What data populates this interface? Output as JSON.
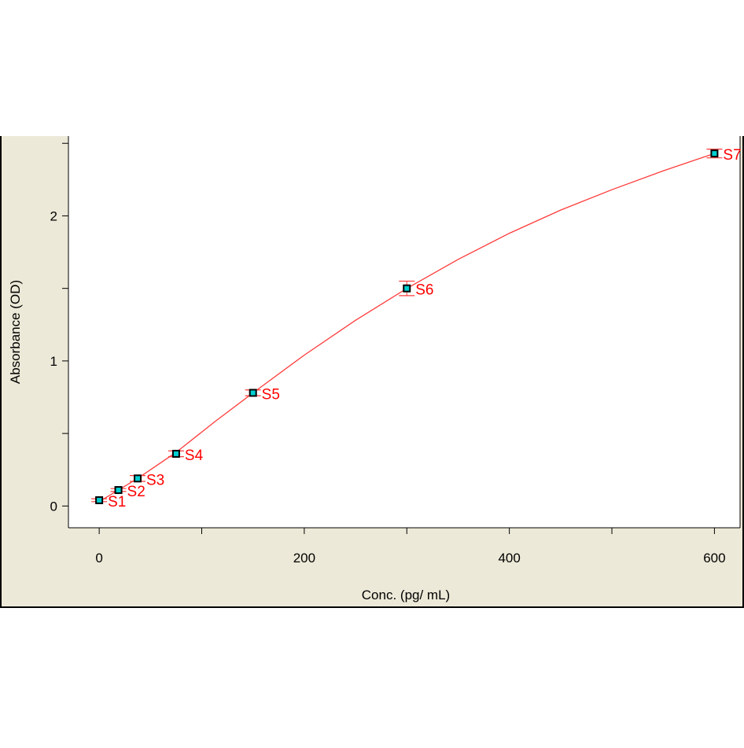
{
  "chart_data": {
    "type": "scatter",
    "title": "",
    "xlabel": "Conc. (pg/ mL)",
    "ylabel": "Absorbance (OD)",
    "xlim": [
      -30,
      625
    ],
    "ylim": [
      -0.15,
      2.55
    ],
    "x_ticks": [
      0,
      200,
      400,
      600
    ],
    "x_minor_ticks": [
      100,
      300,
      500
    ],
    "y_ticks": [
      0,
      1,
      2
    ],
    "y_minor_ticks": [
      0.5,
      1.5,
      2.5
    ],
    "grid": false,
    "series": [
      {
        "points": [
          {
            "label": "S1",
            "x": 0,
            "y": 0.04,
            "err": 0.01
          },
          {
            "label": "S2",
            "x": 18.75,
            "y": 0.11,
            "err": 0.01
          },
          {
            "label": "S3",
            "x": 37.5,
            "y": 0.19,
            "err": 0.02
          },
          {
            "label": "S4",
            "x": 75,
            "y": 0.36,
            "err": 0.02
          },
          {
            "label": "S5",
            "x": 150,
            "y": 0.78,
            "err": 0.02
          },
          {
            "label": "S6",
            "x": 300,
            "y": 1.5,
            "err": 0.05
          },
          {
            "label": "S7",
            "x": 600,
            "y": 2.43,
            "err": 0.03
          }
        ]
      }
    ],
    "fit_curve": {
      "x": [
        0,
        18.75,
        37.5,
        75,
        112.5,
        150,
        200,
        250,
        300,
        350,
        400,
        450,
        500,
        550,
        600
      ],
      "y": [
        0.03,
        0.11,
        0.19,
        0.37,
        0.58,
        0.78,
        1.04,
        1.28,
        1.5,
        1.7,
        1.88,
        2.04,
        2.18,
        2.31,
        2.43
      ]
    },
    "colors": {
      "panel_background": "#ece9d8",
      "plot_background": "#ffffff",
      "curve": "#ff3b3b",
      "label": "#ff0000",
      "marker_fill": "#00ced1",
      "marker_edge": "#000000",
      "axis": "#000000"
    }
  }
}
